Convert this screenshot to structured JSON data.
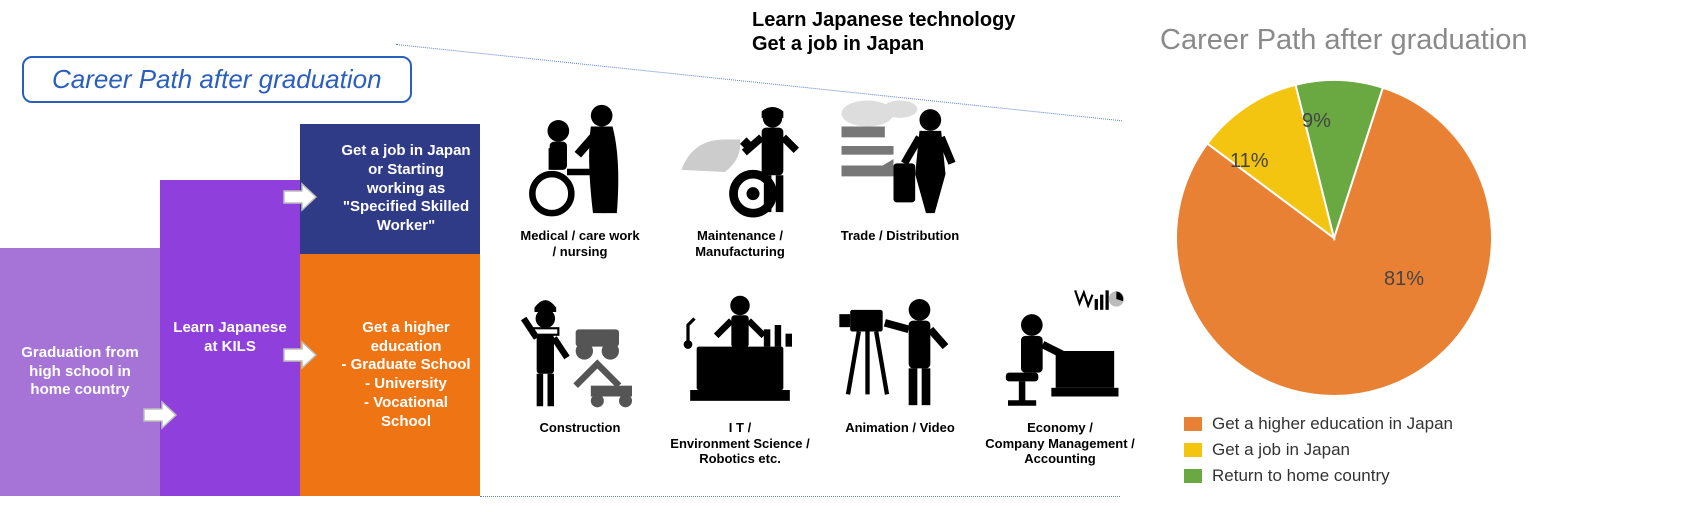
{
  "left": {
    "title": "Career Path after graduation",
    "title_border_color": "#2b5fbf",
    "title_text_color": "#2b5fbf",
    "steps": {
      "s1": {
        "text": "Graduation from high school in home country",
        "bg": "#a574d6"
      },
      "s2": {
        "text": "Learn Japanese at KILS",
        "bg": "#8f3fdc"
      },
      "s3a": {
        "text": "Get a job in Japan or Starting working as \"Specified Skilled Worker\"",
        "bg": "#2f3b86"
      },
      "s3b": {
        "text": "Get a higher education\n- Graduate School\n- University\n- Vocational School",
        "bg": "#ef7413"
      }
    },
    "arrow_fill": "#ffffff",
    "arrow_stroke": "#bdbdbd"
  },
  "center": {
    "title": "Learn Japanese technology\nGet a job in Japan",
    "fields": [
      {
        "id": "medical",
        "label": "Medical / care work\n/ nursing"
      },
      {
        "id": "maintenance",
        "label": "Maintenance / Manufacturing"
      },
      {
        "id": "trade",
        "label": "Trade / Distribution"
      },
      {
        "id": "construction",
        "label": "Construction"
      },
      {
        "id": "it",
        "label": "I T /\nEnvironment Science /\nRobotics  etc."
      },
      {
        "id": "animation",
        "label": "Animation / Video"
      },
      {
        "id": "economy",
        "label": "Economy /\nCompany Management /\nAccounting"
      }
    ]
  },
  "pie": {
    "title": "Career Path after graduation",
    "title_color": "#8a8a8a",
    "type": "pie",
    "slices": [
      {
        "label": "Get a higher education in Japan",
        "value": 81,
        "color": "#e98135",
        "display": "81%"
      },
      {
        "label": "Get a job in Japan",
        "value": 11,
        "color": "#f3c511",
        "display": "11%"
      },
      {
        "label": "Return to home country",
        "value": 9,
        "color": "#6aa842",
        "display": "9%"
      }
    ],
    "start_angle": -72,
    "radius": 158,
    "label_fontsize": 20,
    "label_color": "#444444",
    "background": "#ffffff"
  }
}
